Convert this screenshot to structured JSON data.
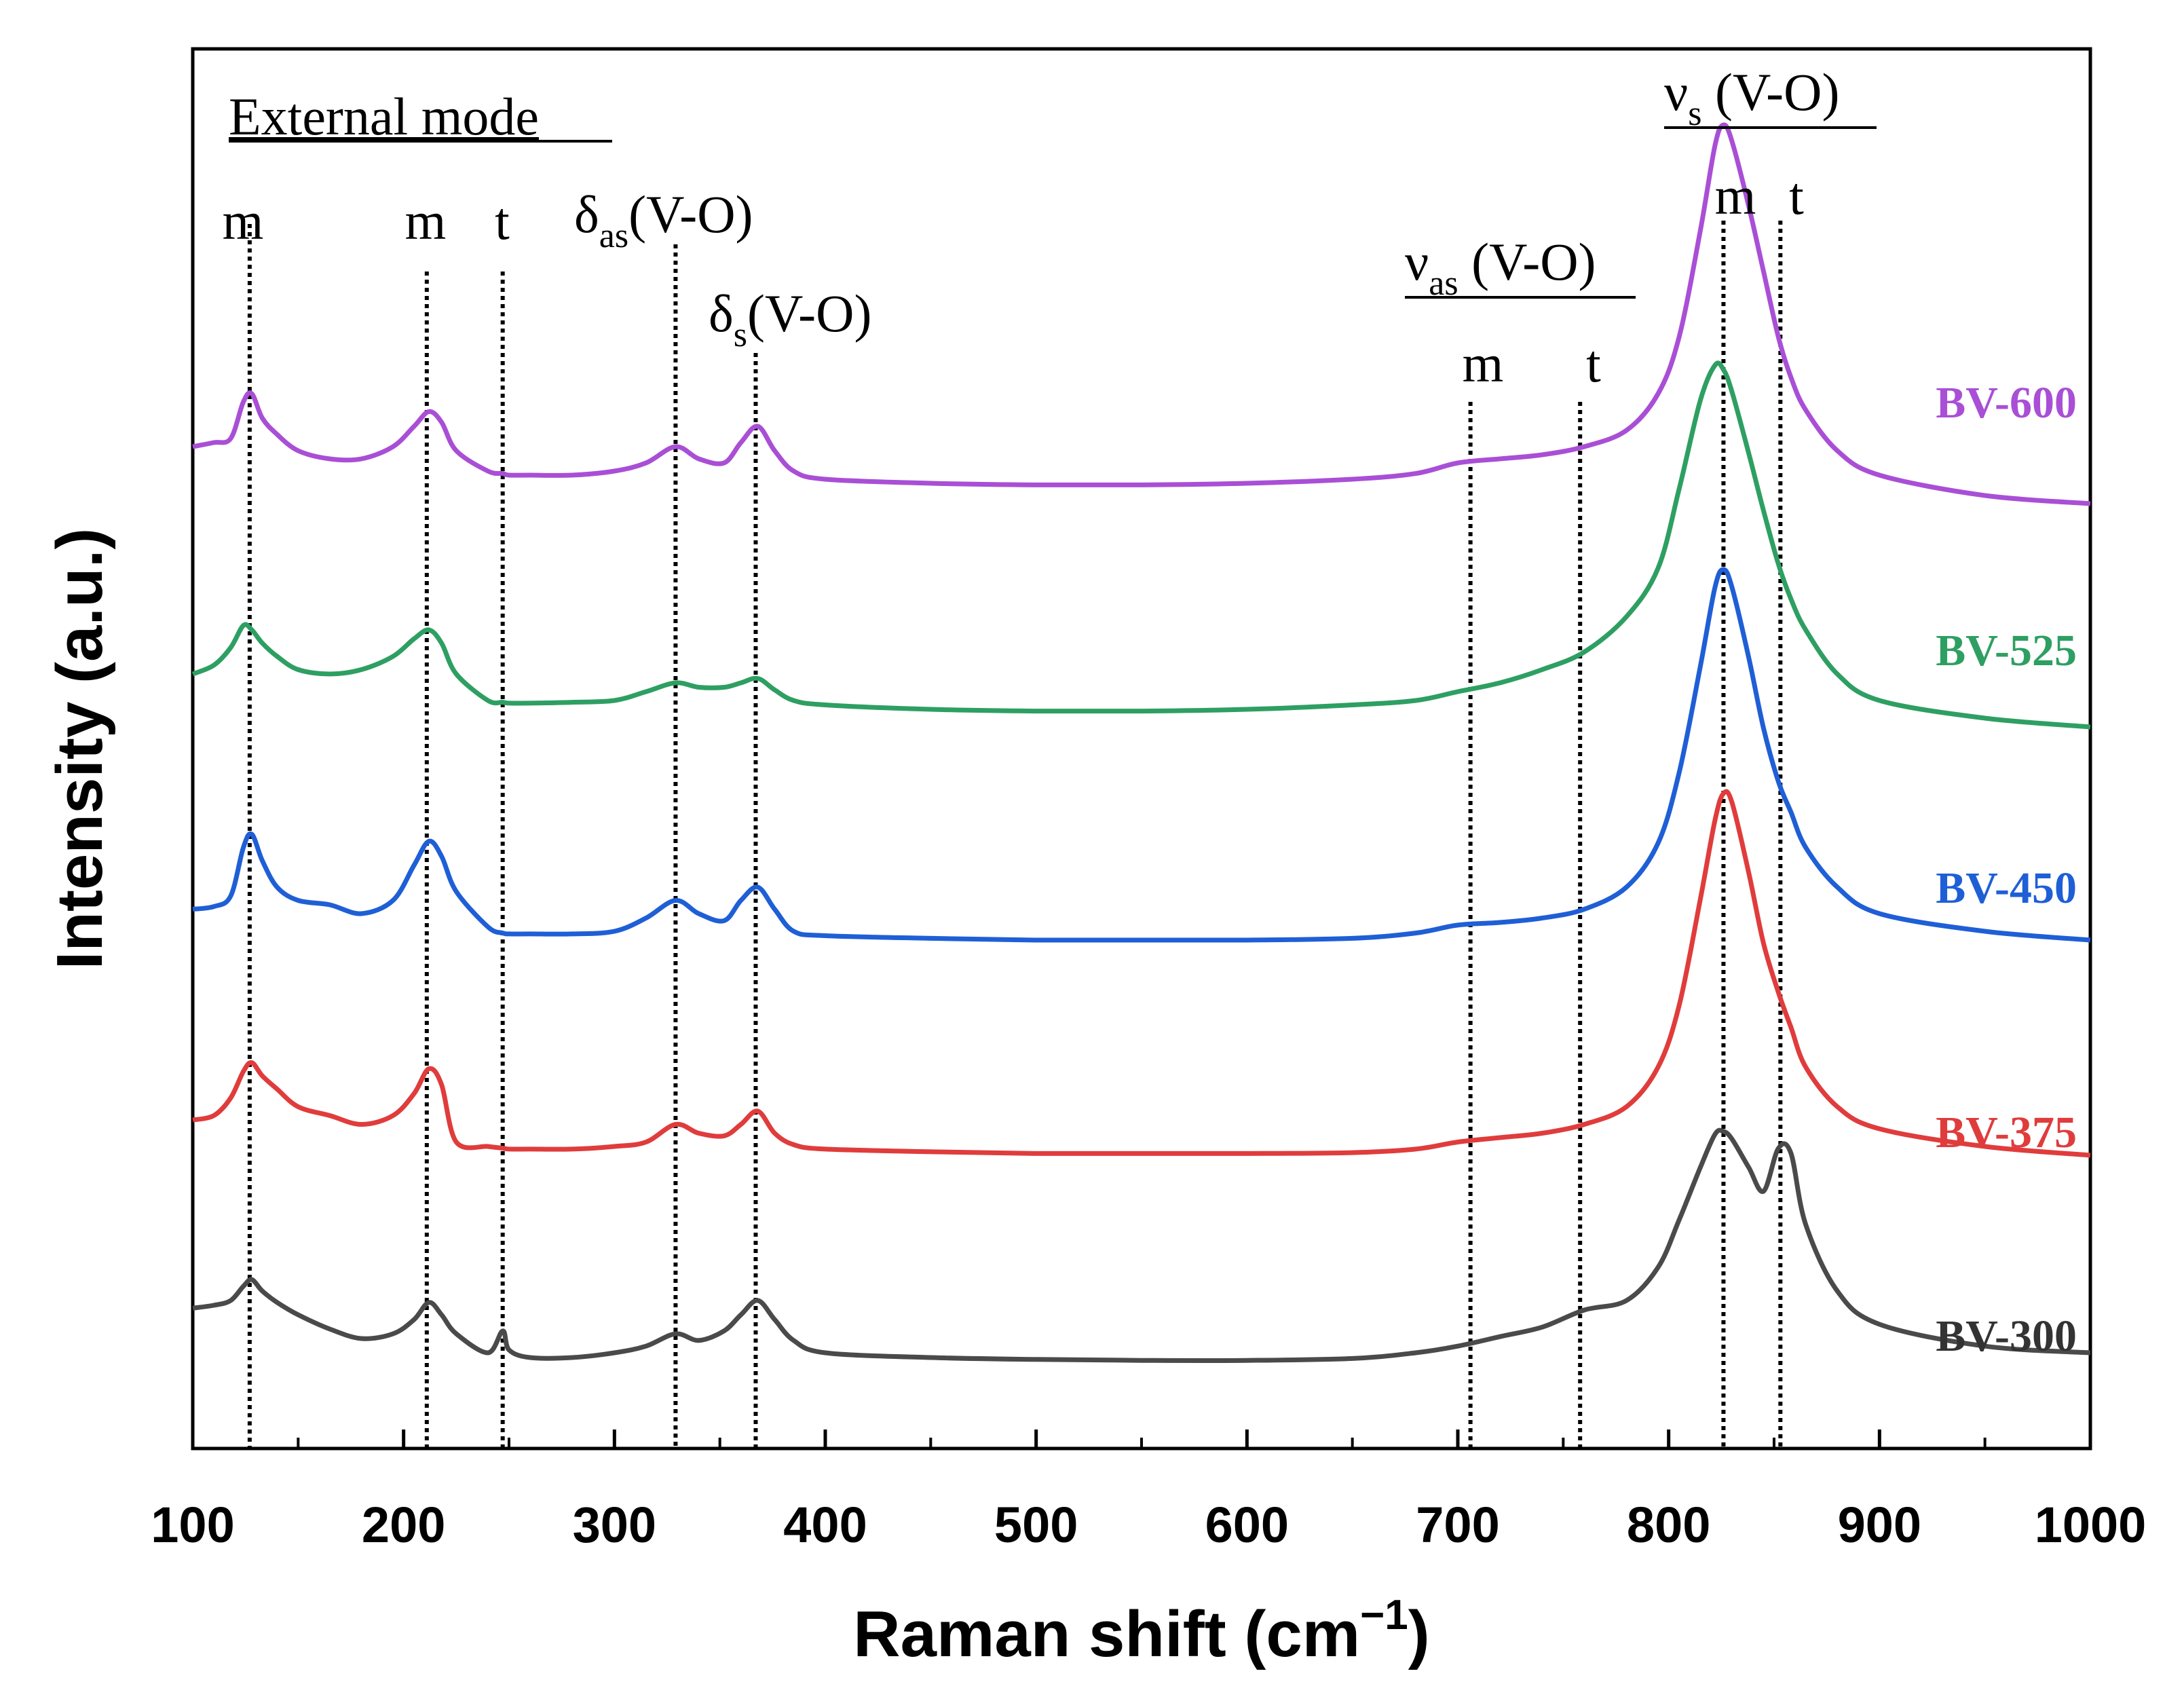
{
  "chart_data": {
    "type": "line",
    "xlabel": "Raman shift (cm",
    "xlabel_sup": "−1",
    "xlabel_close": ")",
    "ylabel": "Intensity (a.u.)",
    "xlim": [
      100,
      1000
    ],
    "x_ticks": [
      100,
      200,
      300,
      400,
      500,
      600,
      700,
      800,
      900,
      1000
    ],
    "x_tick_labels": [
      "100",
      "200",
      "300",
      "400",
      "500",
      "600",
      "700",
      "800",
      "900",
      "1000"
    ],
    "y_ticks": false,
    "series_stack_order": [
      "BV-300",
      "BV-375",
      "BV-450",
      "BV-525",
      "BV-600"
    ],
    "x": [
      100,
      110,
      118,
      124,
      128,
      133,
      140,
      150,
      165,
      180,
      195,
      205,
      212,
      218,
      225,
      240,
      247,
      250,
      260,
      280,
      300,
      315,
      329,
      340,
      352,
      360,
      368,
      376,
      385,
      400,
      450,
      500,
      550,
      600,
      650,
      680,
      700,
      720,
      740,
      760,
      780,
      795,
      805,
      815,
      822,
      826,
      830,
      838,
      845,
      852,
      858,
      865,
      880,
      900,
      950,
      1000
    ],
    "series": [
      {
        "name": "BV-300",
        "color": "#4a4a4a",
        "values": [
          0.52,
          0.55,
          0.6,
          0.75,
          0.82,
          0.7,
          0.58,
          0.45,
          0.3,
          0.2,
          0.25,
          0.4,
          0.58,
          0.45,
          0.25,
          0.05,
          0.28,
          0.08,
          0.0,
          0.0,
          0.05,
          0.12,
          0.25,
          0.18,
          0.28,
          0.45,
          0.6,
          0.4,
          0.18,
          0.05,
          0.0,
          -0.02,
          -0.03,
          -0.03,
          -0.01,
          0.05,
          0.12,
          0.22,
          0.32,
          0.5,
          0.6,
          0.95,
          1.45,
          2.0,
          2.35,
          2.38,
          2.3,
          2.0,
          1.75,
          2.2,
          2.15,
          1.4,
          0.7,
          0.35,
          0.12,
          0.05
        ]
      },
      {
        "name": "BV-375",
        "color": "#e03c3c",
        "values": [
          0.0,
          0.05,
          0.25,
          0.55,
          0.65,
          0.5,
          0.35,
          0.15,
          0.05,
          -0.05,
          0.05,
          0.3,
          0.58,
          0.4,
          -0.25,
          -0.3,
          -0.32,
          -0.33,
          -0.33,
          -0.33,
          -0.3,
          -0.25,
          -0.05,
          -0.15,
          -0.18,
          -0.05,
          0.1,
          -0.15,
          -0.28,
          -0.33,
          -0.36,
          -0.38,
          -0.38,
          -0.38,
          -0.37,
          -0.33,
          -0.25,
          -0.2,
          -0.15,
          -0.05,
          0.15,
          0.6,
          1.3,
          2.5,
          3.4,
          3.7,
          3.6,
          2.8,
          2.0,
          1.45,
          1.05,
          0.6,
          0.15,
          -0.1,
          -0.3,
          -0.4
        ]
      },
      {
        "name": "BV-450",
        "color": "#1f5fd6",
        "values": [
          -0.15,
          -0.12,
          0.0,
          0.55,
          0.7,
          0.4,
          0.1,
          -0.05,
          -0.1,
          -0.2,
          -0.05,
          0.35,
          0.62,
          0.45,
          0.05,
          -0.35,
          -0.42,
          -0.43,
          -0.43,
          -0.43,
          -0.4,
          -0.25,
          -0.05,
          -0.2,
          -0.28,
          -0.05,
          0.1,
          -0.15,
          -0.4,
          -0.45,
          -0.48,
          -0.5,
          -0.5,
          -0.5,
          -0.48,
          -0.42,
          -0.33,
          -0.3,
          -0.25,
          -0.15,
          0.1,
          0.6,
          1.4,
          2.6,
          3.5,
          3.7,
          3.5,
          2.7,
          1.9,
          1.3,
          0.95,
          0.55,
          0.1,
          -0.2,
          -0.4,
          -0.5
        ]
      },
      {
        "name": "BV-525",
        "color": "#2e9f62",
        "values": [
          -0.1,
          0.0,
          0.2,
          0.45,
          0.4,
          0.25,
          0.1,
          -0.05,
          -0.1,
          -0.05,
          0.1,
          0.3,
          0.4,
          0.25,
          -0.1,
          -0.4,
          -0.42,
          -0.43,
          -0.43,
          -0.42,
          -0.4,
          -0.3,
          -0.2,
          -0.25,
          -0.25,
          -0.2,
          -0.15,
          -0.28,
          -0.4,
          -0.45,
          -0.5,
          -0.52,
          -0.52,
          -0.5,
          -0.45,
          -0.4,
          -0.3,
          -0.2,
          -0.05,
          0.15,
          0.55,
          1.1,
          2.0,
          3.0,
          3.4,
          3.35,
          3.1,
          2.4,
          1.75,
          1.15,
          0.75,
          0.4,
          -0.1,
          -0.4,
          -0.6,
          -0.7
        ]
      },
      {
        "name": "BV-600",
        "color": "#a94fd6",
        "values": [
          -0.15,
          -0.1,
          -0.05,
          0.4,
          0.5,
          0.2,
          0.0,
          -0.2,
          -0.3,
          -0.3,
          -0.15,
          0.1,
          0.28,
          0.15,
          -0.2,
          -0.45,
          -0.48,
          -0.5,
          -0.5,
          -0.5,
          -0.45,
          -0.35,
          -0.15,
          -0.3,
          -0.35,
          -0.1,
          0.1,
          -0.2,
          -0.45,
          -0.55,
          -0.6,
          -0.62,
          -0.62,
          -0.6,
          -0.55,
          -0.48,
          -0.35,
          -0.3,
          -0.25,
          -0.15,
          0.05,
          0.5,
          1.2,
          2.5,
          3.55,
          3.8,
          3.6,
          2.8,
          2.0,
          1.2,
          0.7,
          0.3,
          -0.2,
          -0.5,
          -0.75,
          -0.85
        ]
      }
    ],
    "reference_lines": [
      {
        "x": 127,
        "label": "m"
      },
      {
        "x": 211,
        "label": "m"
      },
      {
        "x": 247,
        "label": "t"
      },
      {
        "x": 329,
        "label": ""
      },
      {
        "x": 367,
        "label": ""
      },
      {
        "x": 706,
        "label": "m"
      },
      {
        "x": 758,
        "label": "t"
      },
      {
        "x": 826,
        "label": "m"
      },
      {
        "x": 853,
        "label": "t"
      }
    ],
    "annotations": {
      "external_mode": "External mode",
      "delta_as": {
        "main": "δ",
        "sub": "as",
        "rest": "(V-O)"
      },
      "delta_s": {
        "main": "δ",
        "sub": "s",
        "rest": "(V-O)"
      },
      "nu_as": {
        "main": "ν",
        "sub": "as",
        "rest": " (V-O)"
      },
      "nu_s": {
        "main": "ν",
        "sub": "s",
        "rest": " (V-O)"
      }
    }
  }
}
